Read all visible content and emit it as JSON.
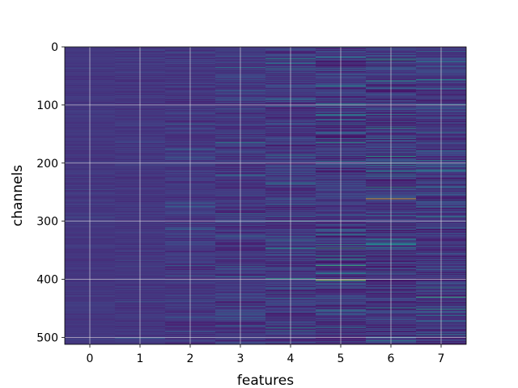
{
  "chart_data": {
    "type": "heatmap",
    "title": "",
    "xlabel": "features",
    "ylabel": "channels",
    "x_categories": [
      "0",
      "1",
      "2",
      "3",
      "4",
      "5",
      "6",
      "7"
    ],
    "y_ticks": [
      0,
      100,
      200,
      300,
      400,
      500
    ],
    "y_range": [
      0,
      512
    ],
    "n_rows": 512,
    "n_cols": 8,
    "colormap": "viridis",
    "grid": true,
    "column_variability": [
      0.06,
      0.08,
      0.13,
      0.17,
      0.19,
      0.24,
      0.26,
      0.23
    ],
    "highlights": [
      {
        "column": 5,
        "row": 401,
        "value": 0.93
      },
      {
        "column": 6,
        "row": 261,
        "value": 0.98
      },
      {
        "column": 6,
        "row": 214,
        "value": 0.55
      },
      {
        "column": 6,
        "row": 218,
        "value": 0.55
      },
      {
        "column": 6,
        "row": 222,
        "value": 0.5
      },
      {
        "column": 4,
        "row": 398,
        "value": 0.7
      }
    ]
  }
}
